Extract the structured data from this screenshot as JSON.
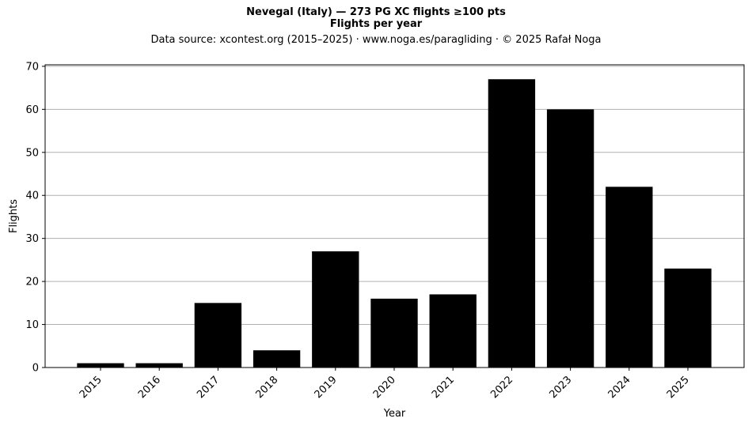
{
  "chart_data": {
    "type": "bar",
    "title": "Nevegal (Italy)  —  273 PG XC flights ≥100 pts",
    "subtitle": "Flights per year",
    "source_note": "Data source: xcontest.org (2015–2025)  ·  www.noga.es/paragliding  ·  © 2025 Rafał Noga",
    "xlabel": "Year",
    "ylabel": "Flights",
    "categories": [
      "2015",
      "2016",
      "2017",
      "2018",
      "2019",
      "2020",
      "2021",
      "2022",
      "2023",
      "2024",
      "2025"
    ],
    "values": [
      1,
      1,
      15,
      4,
      27,
      16,
      17,
      67,
      60,
      42,
      23
    ],
    "ylim": [
      0,
      70
    ],
    "yticks": [
      "0",
      "10",
      "20",
      "30",
      "40",
      "50",
      "60",
      "70"
    ],
    "grid": "horizontal",
    "bar_color": "#000000",
    "grid_color": "#b0b0b0"
  }
}
